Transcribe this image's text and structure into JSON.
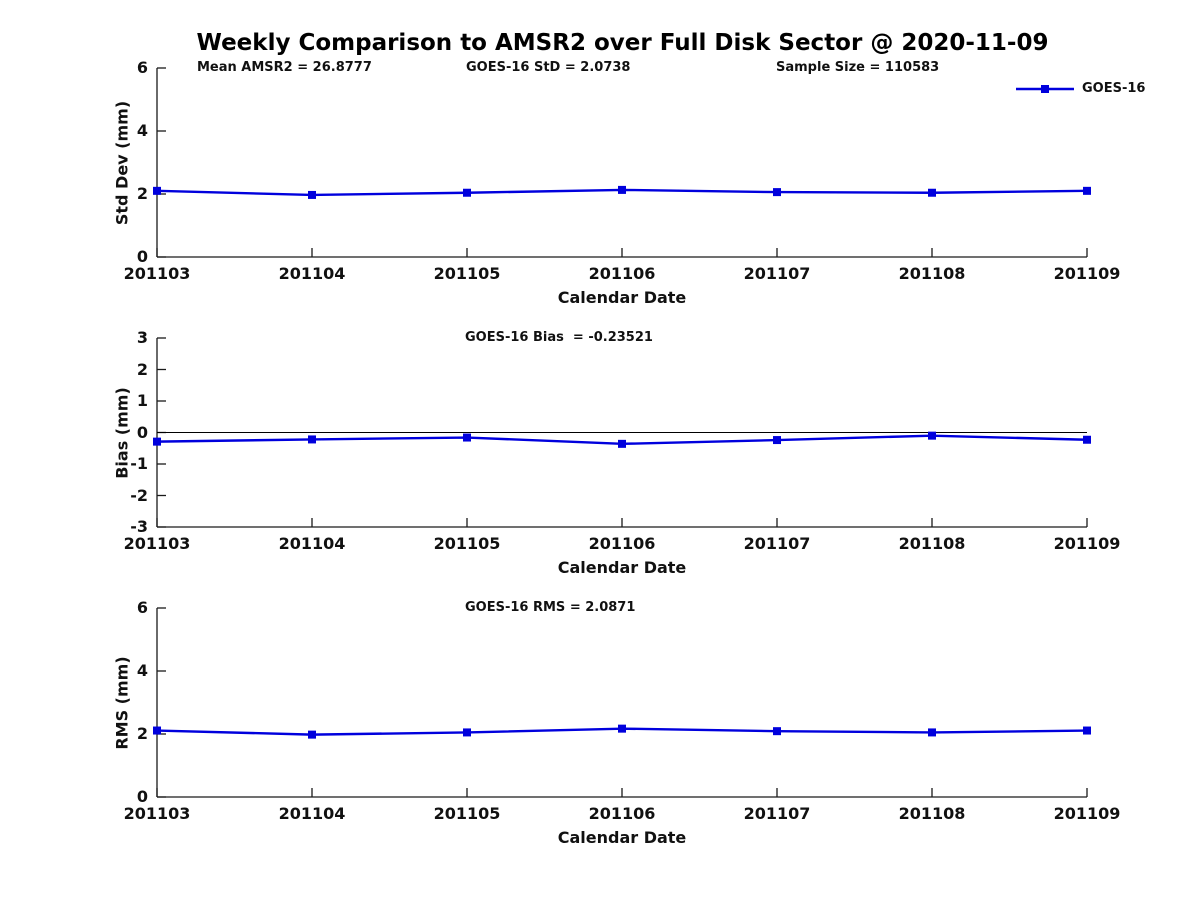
{
  "figure": {
    "title": "Weekly Comparison to AMSR2 over Full Disk Sector @ 2020-11-09",
    "legend": {
      "label": "GOES-16",
      "series_color": "#0000dd",
      "position": "top-right"
    }
  },
  "chart_data": [
    {
      "type": "line",
      "panel": "std-dev",
      "annotations": [
        "Mean AMSR2 = 26.8777",
        "GOES-16 StD = 2.0738",
        "Sample Size = 110583"
      ],
      "categories": [
        "201103",
        "201104",
        "201105",
        "201106",
        "201107",
        "201108",
        "201109"
      ],
      "series": [
        {
          "name": "GOES-16",
          "color": "#0000dd",
          "marker": "square",
          "values": [
            2.1,
            1.97,
            2.04,
            2.13,
            2.06,
            2.04,
            2.1
          ]
        }
      ],
      "xlabel": "Calendar Date",
      "ylabel": "Std Dev (mm)",
      "ylim": [
        0,
        6
      ],
      "yticks": [
        0,
        2,
        4,
        6
      ],
      "grid": false,
      "zero_line": false
    },
    {
      "type": "line",
      "panel": "bias",
      "annotations": [
        "GOES-16 Bias  = -0.23521"
      ],
      "categories": [
        "201103",
        "201104",
        "201105",
        "201106",
        "201107",
        "201108",
        "201109"
      ],
      "series": [
        {
          "name": "GOES-16",
          "color": "#0000dd",
          "marker": "square",
          "values": [
            -0.29,
            -0.22,
            -0.16,
            -0.36,
            -0.24,
            -0.1,
            -0.23
          ]
        }
      ],
      "xlabel": "Calendar Date",
      "ylabel": "Bias (mm)",
      "ylim": [
        -3,
        3
      ],
      "yticks": [
        -3,
        -2,
        -1,
        0,
        1,
        2,
        3
      ],
      "grid": false,
      "zero_line": true
    },
    {
      "type": "line",
      "panel": "rms",
      "annotations": [
        "GOES-16 RMS = 2.0871"
      ],
      "categories": [
        "201103",
        "201104",
        "201105",
        "201106",
        "201107",
        "201108",
        "201109"
      ],
      "series": [
        {
          "name": "GOES-16",
          "color": "#0000dd",
          "marker": "square",
          "values": [
            2.11,
            1.98,
            2.05,
            2.17,
            2.09,
            2.05,
            2.11
          ]
        }
      ],
      "xlabel": "Calendar Date",
      "ylabel": "RMS (mm)",
      "ylim": [
        0,
        6
      ],
      "yticks": [
        0,
        2,
        4,
        6
      ],
      "grid": false,
      "zero_line": false
    }
  ]
}
